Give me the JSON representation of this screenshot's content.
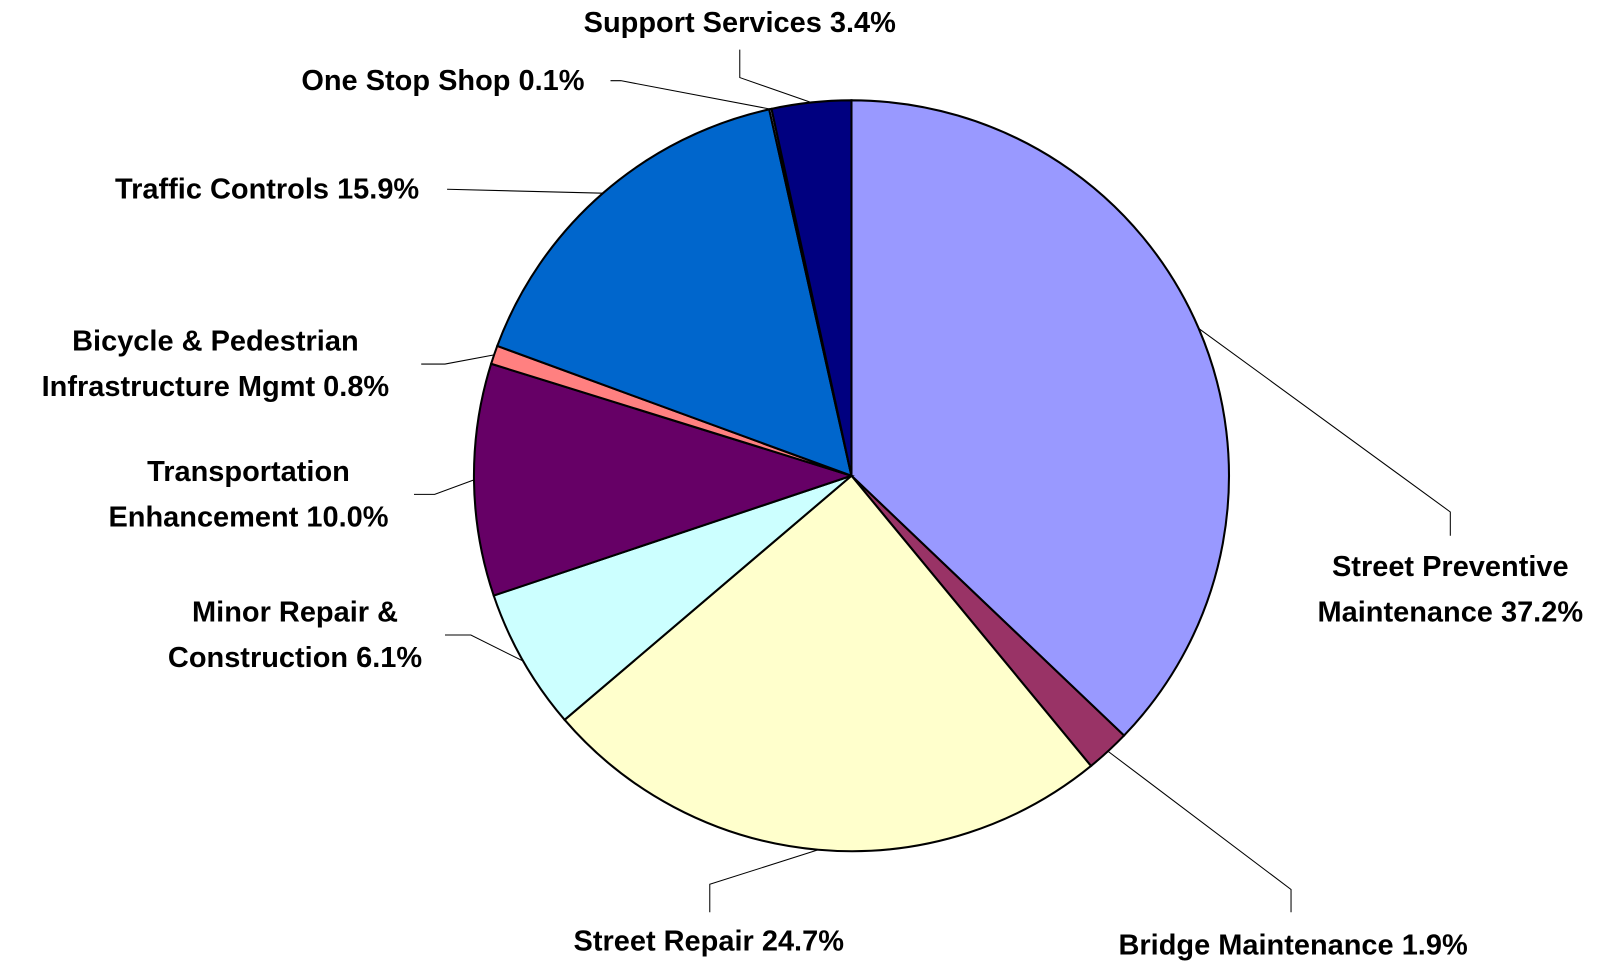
{
  "chart_data": {
    "type": "pie",
    "categories": [
      "Street Preventive Maintenance",
      "Bridge Maintenance",
      "Street Repair",
      "Minor Repair & Construction",
      "Transportation Enhancement",
      "Bicycle & Pedestrian Infrastructure Mgmt",
      "Traffic Controls",
      "One Stop Shop",
      "Support Services"
    ],
    "values": [
      37.2,
      1.9,
      24.7,
      6.1,
      10,
      0.8,
      15.9,
      0.1,
      3.4
    ],
    "value_labels": [
      "37.2%",
      "1.9%",
      "24.7%",
      "6.1%",
      "10.0%",
      "0.8%",
      "15.9%",
      "0.1%",
      "3.4%"
    ],
    "colors": [
      "#9999ff",
      "#993366",
      "#ffffcc",
      "#ccffff",
      "#660066",
      "#ff8080",
      "#0066cc",
      "#ccccff",
      "#000080"
    ]
  }
}
